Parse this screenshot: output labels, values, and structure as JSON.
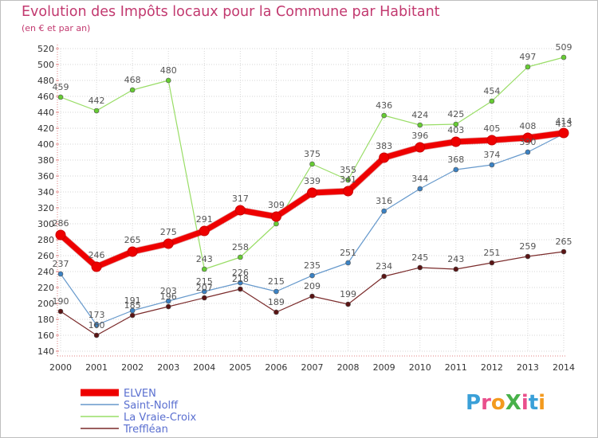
{
  "title": "Evolution des Impôts locaux pour la Commune par Habitant",
  "subtitle": "(en € et par an)",
  "logo": {
    "text": "ProXiti",
    "colors": [
      "#3aa0d8",
      "#e94f8c",
      "#f39a1e",
      "#48b14a",
      "#e94f8c",
      "#3aa0d8",
      "#f39a1e"
    ]
  },
  "chart_data": {
    "type": "line",
    "title": "Evolution des Impôts locaux pour la Commune par Habitant",
    "subtitle": "(en € et par an)",
    "xlabel": "",
    "ylabel": "",
    "x": [
      "2000",
      "2001",
      "2002",
      "2003",
      "2004",
      "2005",
      "2006",
      "2007",
      "2008",
      "2009",
      "2010",
      "2011",
      "2012",
      "2013",
      "2014"
    ],
    "ylim": [
      140,
      520
    ],
    "yticks": [
      140,
      160,
      180,
      200,
      220,
      240,
      260,
      280,
      300,
      320,
      340,
      360,
      380,
      400,
      420,
      440,
      460,
      480,
      500,
      520
    ],
    "grid": true,
    "legend_position": "bottom-left",
    "series": [
      {
        "name": "Treffléan",
        "color": "#7a2a2a",
        "point_color": "#5a1414",
        "width": 1.2,
        "point_radius": 3,
        "values": [
          190,
          160,
          185,
          196,
          207,
          218,
          189,
          209,
          199,
          234,
          245,
          243,
          251,
          259,
          265
        ],
        "labels": [
          "190",
          "160",
          "185",
          "196",
          "207",
          "218",
          "189",
          "209",
          "199",
          "234",
          "245",
          "243",
          "251",
          "259",
          "265"
        ]
      },
      {
        "name": "Saint-Nolff",
        "color": "#6699cc",
        "point_color": "#3b82c4",
        "width": 1.2,
        "point_radius": 3,
        "values": [
          237,
          173,
          191,
          203,
          215,
          226,
          215,
          235,
          251,
          316,
          344,
          368,
          374,
          390,
          413
        ],
        "labels": [
          "237",
          "173",
          "191",
          "203",
          "215",
          "226",
          "215",
          "235",
          "251",
          "316",
          "344",
          "368",
          "374",
          "390",
          "413"
        ]
      },
      {
        "name": "La Vraie-Croix",
        "color": "#99dd66",
        "point_color": "#66cc33",
        "width": 1.2,
        "point_radius": 3,
        "values": [
          459,
          442,
          468,
          480,
          243,
          258,
          300,
          375,
          355,
          436,
          424,
          425,
          454,
          497,
          509
        ],
        "labels": [
          "459",
          "442",
          "468",
          "480",
          "243",
          "258",
          "",
          "375",
          "355",
          "436",
          "424",
          "425",
          "454",
          "497",
          "509"
        ]
      },
      {
        "name": "ELVEN",
        "color": "#ee0000",
        "point_color": "#ee0000",
        "width": 7,
        "point_radius": 6,
        "values": [
          286,
          246,
          265,
          275,
          291,
          317,
          309,
          339,
          341,
          383,
          396,
          403,
          405,
          408,
          414
        ],
        "labels": [
          "286",
          "246",
          "265",
          "275",
          "291",
          "317",
          "309",
          "339",
          "341",
          "383",
          "396",
          "403",
          "405",
          "408",
          "414"
        ]
      }
    ],
    "legend": [
      "ELVEN",
      "Saint-Nolff",
      "La Vraie-Croix",
      "Treffléan"
    ]
  }
}
